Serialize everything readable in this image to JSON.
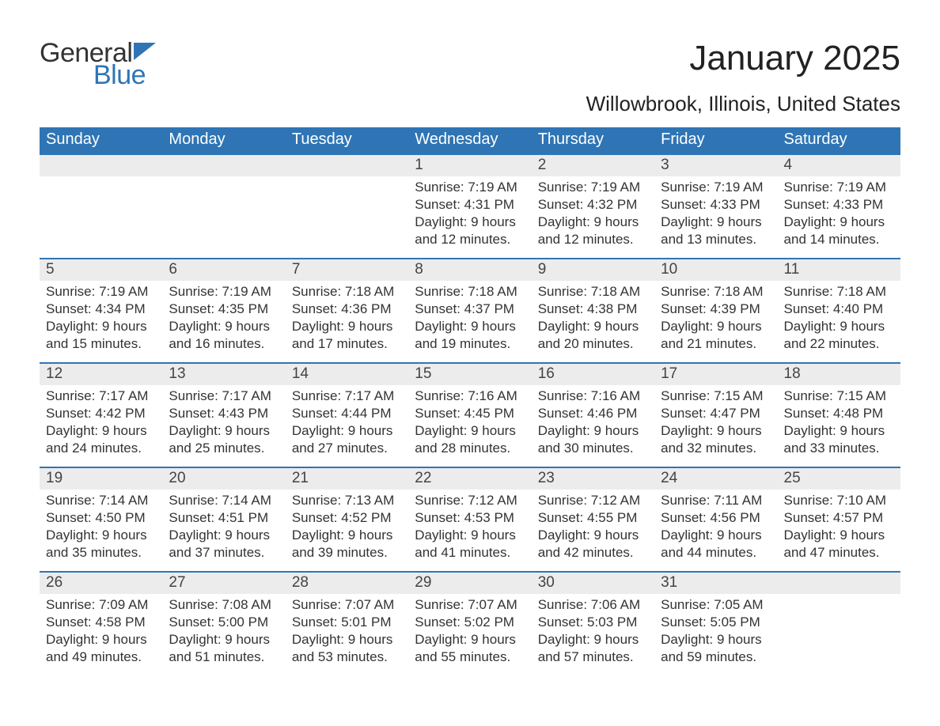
{
  "logo": {
    "text1": "General",
    "text2": "Blue",
    "flag_color": "#2f75b5"
  },
  "title": "January 2025",
  "location": "Willowbrook, Illinois, United States",
  "colors": {
    "header_bg": "#2f75b5",
    "header_text": "#ffffff",
    "daynum_bg": "#ececec",
    "week_divider": "#2f75b5",
    "body_text": "#333333",
    "page_bg": "#ffffff"
  },
  "weekdays": [
    "Sunday",
    "Monday",
    "Tuesday",
    "Wednesday",
    "Thursday",
    "Friday",
    "Saturday"
  ],
  "weeks": [
    [
      null,
      null,
      null,
      {
        "n": "1",
        "sr": "7:19 AM",
        "ss": "4:31 PM",
        "d1": "Daylight: 9 hours",
        "d2": "and 12 minutes."
      },
      {
        "n": "2",
        "sr": "7:19 AM",
        "ss": "4:32 PM",
        "d1": "Daylight: 9 hours",
        "d2": "and 12 minutes."
      },
      {
        "n": "3",
        "sr": "7:19 AM",
        "ss": "4:33 PM",
        "d1": "Daylight: 9 hours",
        "d2": "and 13 minutes."
      },
      {
        "n": "4",
        "sr": "7:19 AM",
        "ss": "4:33 PM",
        "d1": "Daylight: 9 hours",
        "d2": "and 14 minutes."
      }
    ],
    [
      {
        "n": "5",
        "sr": "7:19 AM",
        "ss": "4:34 PM",
        "d1": "Daylight: 9 hours",
        "d2": "and 15 minutes."
      },
      {
        "n": "6",
        "sr": "7:19 AM",
        "ss": "4:35 PM",
        "d1": "Daylight: 9 hours",
        "d2": "and 16 minutes."
      },
      {
        "n": "7",
        "sr": "7:18 AM",
        "ss": "4:36 PM",
        "d1": "Daylight: 9 hours",
        "d2": "and 17 minutes."
      },
      {
        "n": "8",
        "sr": "7:18 AM",
        "ss": "4:37 PM",
        "d1": "Daylight: 9 hours",
        "d2": "and 19 minutes."
      },
      {
        "n": "9",
        "sr": "7:18 AM",
        "ss": "4:38 PM",
        "d1": "Daylight: 9 hours",
        "d2": "and 20 minutes."
      },
      {
        "n": "10",
        "sr": "7:18 AM",
        "ss": "4:39 PM",
        "d1": "Daylight: 9 hours",
        "d2": "and 21 minutes."
      },
      {
        "n": "11",
        "sr": "7:18 AM",
        "ss": "4:40 PM",
        "d1": "Daylight: 9 hours",
        "d2": "and 22 minutes."
      }
    ],
    [
      {
        "n": "12",
        "sr": "7:17 AM",
        "ss": "4:42 PM",
        "d1": "Daylight: 9 hours",
        "d2": "and 24 minutes."
      },
      {
        "n": "13",
        "sr": "7:17 AM",
        "ss": "4:43 PM",
        "d1": "Daylight: 9 hours",
        "d2": "and 25 minutes."
      },
      {
        "n": "14",
        "sr": "7:17 AM",
        "ss": "4:44 PM",
        "d1": "Daylight: 9 hours",
        "d2": "and 27 minutes."
      },
      {
        "n": "15",
        "sr": "7:16 AM",
        "ss": "4:45 PM",
        "d1": "Daylight: 9 hours",
        "d2": "and 28 minutes."
      },
      {
        "n": "16",
        "sr": "7:16 AM",
        "ss": "4:46 PM",
        "d1": "Daylight: 9 hours",
        "d2": "and 30 minutes."
      },
      {
        "n": "17",
        "sr": "7:15 AM",
        "ss": "4:47 PM",
        "d1": "Daylight: 9 hours",
        "d2": "and 32 minutes."
      },
      {
        "n": "18",
        "sr": "7:15 AM",
        "ss": "4:48 PM",
        "d1": "Daylight: 9 hours",
        "d2": "and 33 minutes."
      }
    ],
    [
      {
        "n": "19",
        "sr": "7:14 AM",
        "ss": "4:50 PM",
        "d1": "Daylight: 9 hours",
        "d2": "and 35 minutes."
      },
      {
        "n": "20",
        "sr": "7:14 AM",
        "ss": "4:51 PM",
        "d1": "Daylight: 9 hours",
        "d2": "and 37 minutes."
      },
      {
        "n": "21",
        "sr": "7:13 AM",
        "ss": "4:52 PM",
        "d1": "Daylight: 9 hours",
        "d2": "and 39 minutes."
      },
      {
        "n": "22",
        "sr": "7:12 AM",
        "ss": "4:53 PM",
        "d1": "Daylight: 9 hours",
        "d2": "and 41 minutes."
      },
      {
        "n": "23",
        "sr": "7:12 AM",
        "ss": "4:55 PM",
        "d1": "Daylight: 9 hours",
        "d2": "and 42 minutes."
      },
      {
        "n": "24",
        "sr": "7:11 AM",
        "ss": "4:56 PM",
        "d1": "Daylight: 9 hours",
        "d2": "and 44 minutes."
      },
      {
        "n": "25",
        "sr": "7:10 AM",
        "ss": "4:57 PM",
        "d1": "Daylight: 9 hours",
        "d2": "and 47 minutes."
      }
    ],
    [
      {
        "n": "26",
        "sr": "7:09 AM",
        "ss": "4:58 PM",
        "d1": "Daylight: 9 hours",
        "d2": "and 49 minutes."
      },
      {
        "n": "27",
        "sr": "7:08 AM",
        "ss": "5:00 PM",
        "d1": "Daylight: 9 hours",
        "d2": "and 51 minutes."
      },
      {
        "n": "28",
        "sr": "7:07 AM",
        "ss": "5:01 PM",
        "d1": "Daylight: 9 hours",
        "d2": "and 53 minutes."
      },
      {
        "n": "29",
        "sr": "7:07 AM",
        "ss": "5:02 PM",
        "d1": "Daylight: 9 hours",
        "d2": "and 55 minutes."
      },
      {
        "n": "30",
        "sr": "7:06 AM",
        "ss": "5:03 PM",
        "d1": "Daylight: 9 hours",
        "d2": "and 57 minutes."
      },
      {
        "n": "31",
        "sr": "7:05 AM",
        "ss": "5:05 PM",
        "d1": "Daylight: 9 hours",
        "d2": "and 59 minutes."
      },
      null
    ]
  ],
  "labels": {
    "sunrise_prefix": "Sunrise: ",
    "sunset_prefix": "Sunset: "
  }
}
